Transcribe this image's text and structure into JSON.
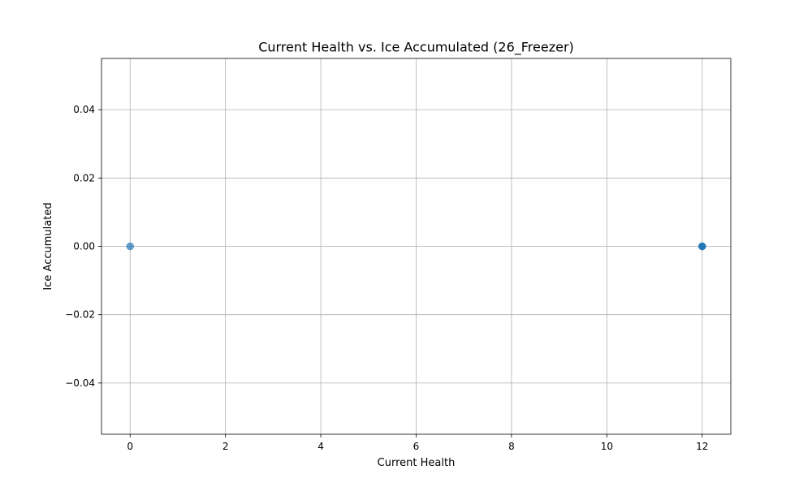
{
  "chart_data": {
    "type": "scatter",
    "title": "Current Health vs. Ice Accumulated (26_Freezer)",
    "xlabel": "Current Health",
    "ylabel": "Ice Accumulated",
    "xlim": [
      -0.6,
      12.6
    ],
    "ylim": [
      -0.055,
      0.055
    ],
    "xticks": [
      0,
      2,
      4,
      6,
      8,
      10,
      12
    ],
    "xtick_labels": [
      "0",
      "2",
      "4",
      "6",
      "8",
      "10",
      "12"
    ],
    "yticks": [
      -0.04,
      -0.02,
      0.0,
      0.02,
      0.04
    ],
    "ytick_labels": [
      "−0.04",
      "−0.02",
      "0.00",
      "0.02",
      "0.04"
    ],
    "grid": true,
    "series": [
      {
        "x": [
          0,
          12,
          12,
          12
        ],
        "y": [
          0,
          0,
          0,
          0
        ]
      }
    ],
    "colors": {
      "marker": "#1f77b4",
      "grid": "#b0b0b0",
      "axes": "#000000"
    }
  }
}
